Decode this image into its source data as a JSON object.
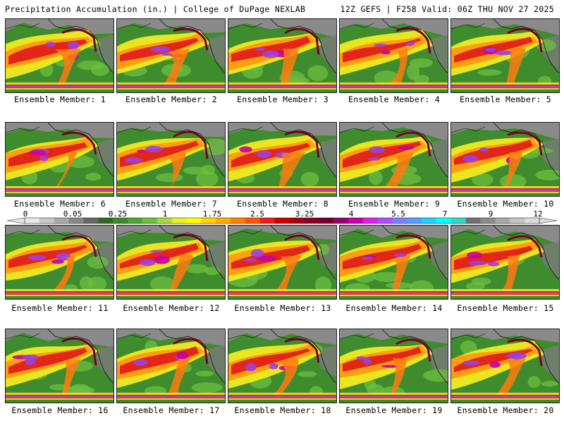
{
  "header": {
    "title": "Precipitation Accumulation (in.) | College of DuPage NEXLAB",
    "run_info": "12Z GEFS | F258 Valid: 06Z THU NOV 27 2025"
  },
  "caption_prefix": "Ensemble Member: ",
  "members": [
    {
      "label": "Ensemble Member: 1"
    },
    {
      "label": "Ensemble Member: 2"
    },
    {
      "label": "Ensemble Member: 3"
    },
    {
      "label": "Ensemble Member: 4"
    },
    {
      "label": "Ensemble Member: 5"
    },
    {
      "label": "Ensemble Member: 6"
    },
    {
      "label": "Ensemble Member: 7"
    },
    {
      "label": "Ensemble Member: 8"
    },
    {
      "label": "Ensemble Member: 9"
    },
    {
      "label": "Ensemble Member: 10"
    },
    {
      "label": "Ensemble Member: 11"
    },
    {
      "label": "Ensemble Member: 12"
    },
    {
      "label": "Ensemble Member: 13"
    },
    {
      "label": "Ensemble Member: 14"
    },
    {
      "label": "Ensemble Member: 15"
    },
    {
      "label": "Ensemble Member: 16"
    },
    {
      "label": "Ensemble Member: 17"
    },
    {
      "label": "Ensemble Member: 18"
    },
    {
      "label": "Ensemble Member: 19"
    },
    {
      "label": "Ensemble Member: 20"
    }
  ],
  "colorbar": {
    "ticks": [
      "0",
      "0.05",
      "0.25",
      "1",
      "1.75",
      "2.5",
      "3.25",
      "4",
      "5.5",
      "7",
      "9",
      "12"
    ],
    "colors": [
      "#e8e8e8",
      "#c8c8c8",
      "#a8a8a8",
      "#888888",
      "#686868",
      "#2e6b1f",
      "#3d8a2c",
      "#4ea337",
      "#6cbf3f",
      "#a8d83a",
      "#e8f020",
      "#ffff00",
      "#ffd400",
      "#ffaa00",
      "#ff7f00",
      "#ff5500",
      "#ee1c1c",
      "#cc0000",
      "#a80010",
      "#880020",
      "#70002a",
      "#9a006a",
      "#c800a8",
      "#e020e0",
      "#b04cff",
      "#8080ff",
      "#50a0ff",
      "#20d0ff",
      "#00ffff",
      "#30d8c8",
      "#707070",
      "#8c8c8c",
      "#a8a8a8",
      "#c4c4c4",
      "#dcdcdc"
    ]
  }
}
